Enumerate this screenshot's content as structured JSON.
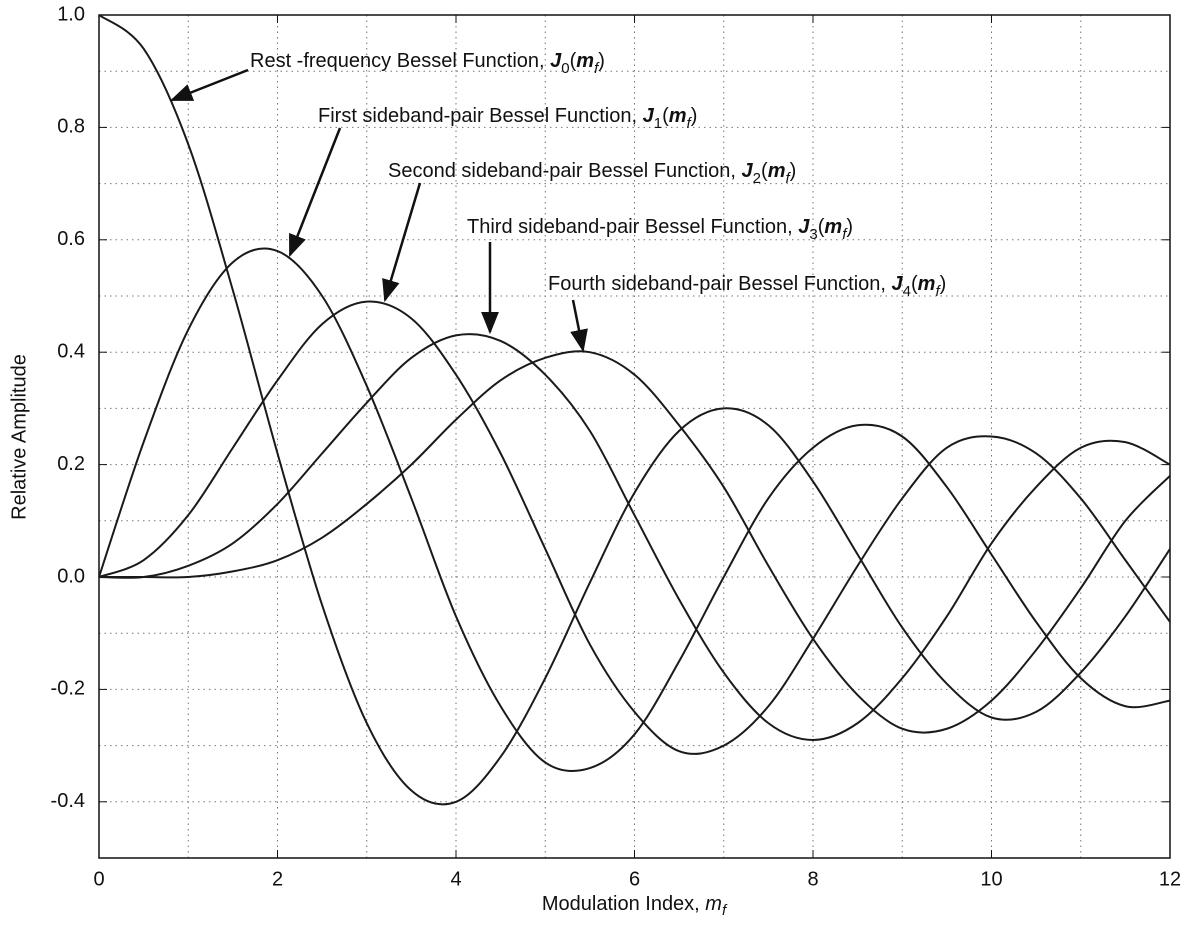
{
  "chart_data": {
    "type": "line",
    "x_label": [
      "Modulation Index, ",
      "m",
      "f"
    ],
    "y_label": "Relative Amplitude",
    "x": [
      0,
      0.5,
      1,
      1.5,
      2,
      2.5,
      3,
      3.5,
      4,
      4.5,
      5,
      5.5,
      6,
      6.5,
      7,
      7.5,
      8,
      8.5,
      9,
      9.5,
      10,
      10.5,
      11,
      11.5,
      12
    ],
    "series": [
      {
        "color": "#1a1a1a",
        "label": [
          "Rest -frequency Bessel Function, ",
          "J",
          "0",
          "(",
          "m",
          "f",
          ")"
        ],
        "values": [
          1,
          0.94,
          0.77,
          0.51,
          0.22,
          -0.05,
          -0.26,
          -0.38,
          -0.4,
          -0.32,
          -0.18,
          -0.01,
          0.15,
          0.26,
          0.3,
          0.27,
          0.17,
          0.04,
          -0.09,
          -0.19,
          -0.25,
          -0.24,
          -0.17,
          -0.07,
          0.05
        ]
      },
      {
        "color": "#1a1a1a",
        "label": [
          "First  sideband-pair Bessel Function, ",
          "J",
          "1",
          "(",
          "m",
          "f",
          ")"
        ],
        "values": [
          0,
          0.24,
          0.44,
          0.56,
          0.58,
          0.5,
          0.34,
          0.14,
          -0.07,
          -0.23,
          -0.33,
          -0.34,
          -0.28,
          -0.15,
          0,
          0.14,
          0.23,
          0.27,
          0.25,
          0.16,
          0.04,
          -0.08,
          -0.18,
          -0.23,
          -0.22
        ]
      },
      {
        "color": "#1a1a1a",
        "label": [
          "Second  sideband-pair Bessel Function, ",
          "J",
          "2",
          "(",
          "m",
          "f",
          ")"
        ],
        "values": [
          0,
          0.03,
          0.11,
          0.23,
          0.35,
          0.45,
          0.49,
          0.46,
          0.36,
          0.22,
          0.05,
          -0.12,
          -0.24,
          -0.31,
          -0.3,
          -0.23,
          -0.11,
          0.02,
          0.14,
          0.23,
          0.25,
          0.22,
          0.14,
          0.03,
          -0.08
        ]
      },
      {
        "color": "#1a1a1a",
        "label": [
          "Third  sideband-pair Bessel Function, ",
          "J",
          "3",
          "(",
          "m",
          "f",
          ")"
        ],
        "values": [
          0,
          0,
          0.02,
          0.06,
          0.13,
          0.22,
          0.31,
          0.39,
          0.43,
          0.42,
          0.36,
          0.26,
          0.11,
          -0.04,
          -0.17,
          -0.26,
          -0.29,
          -0.26,
          -0.18,
          -0.07,
          0.06,
          0.16,
          0.23,
          0.24,
          0.2
        ]
      },
      {
        "color": "#1a1a1a",
        "label": [
          "Fourth  sideband-pair Bessel Function, ",
          "J",
          "4",
          "(",
          "m",
          "f",
          ")"
        ],
        "values": [
          0,
          0,
          0,
          0.01,
          0.03,
          0.07,
          0.13,
          0.2,
          0.28,
          0.35,
          0.39,
          0.4,
          0.36,
          0.27,
          0.16,
          0.02,
          -0.11,
          -0.21,
          -0.27,
          -0.27,
          -0.22,
          -0.13,
          -0.02,
          0.1,
          0.18
        ]
      }
    ],
    "xlim": [
      0,
      12
    ],
    "xticks": [
      0,
      2,
      4,
      6,
      8,
      10,
      12
    ],
    "x_minor_ticks": [
      1,
      3,
      5,
      7,
      9,
      11
    ],
    "ylim": [
      -0.5,
      1
    ],
    "yticks": [
      {
        "value": 1,
        "label": "1.0"
      },
      0.8,
      0.6,
      0.4,
      0.2,
      {
        "value": 0,
        "label": "0.0"
      },
      -0.2,
      -0.4
    ],
    "y_minor_ticks": [
      0.9,
      0.7,
      0.5,
      0.3,
      0.1,
      -0.1,
      -0.3,
      -0.5
    ],
    "grid": true
  }
}
